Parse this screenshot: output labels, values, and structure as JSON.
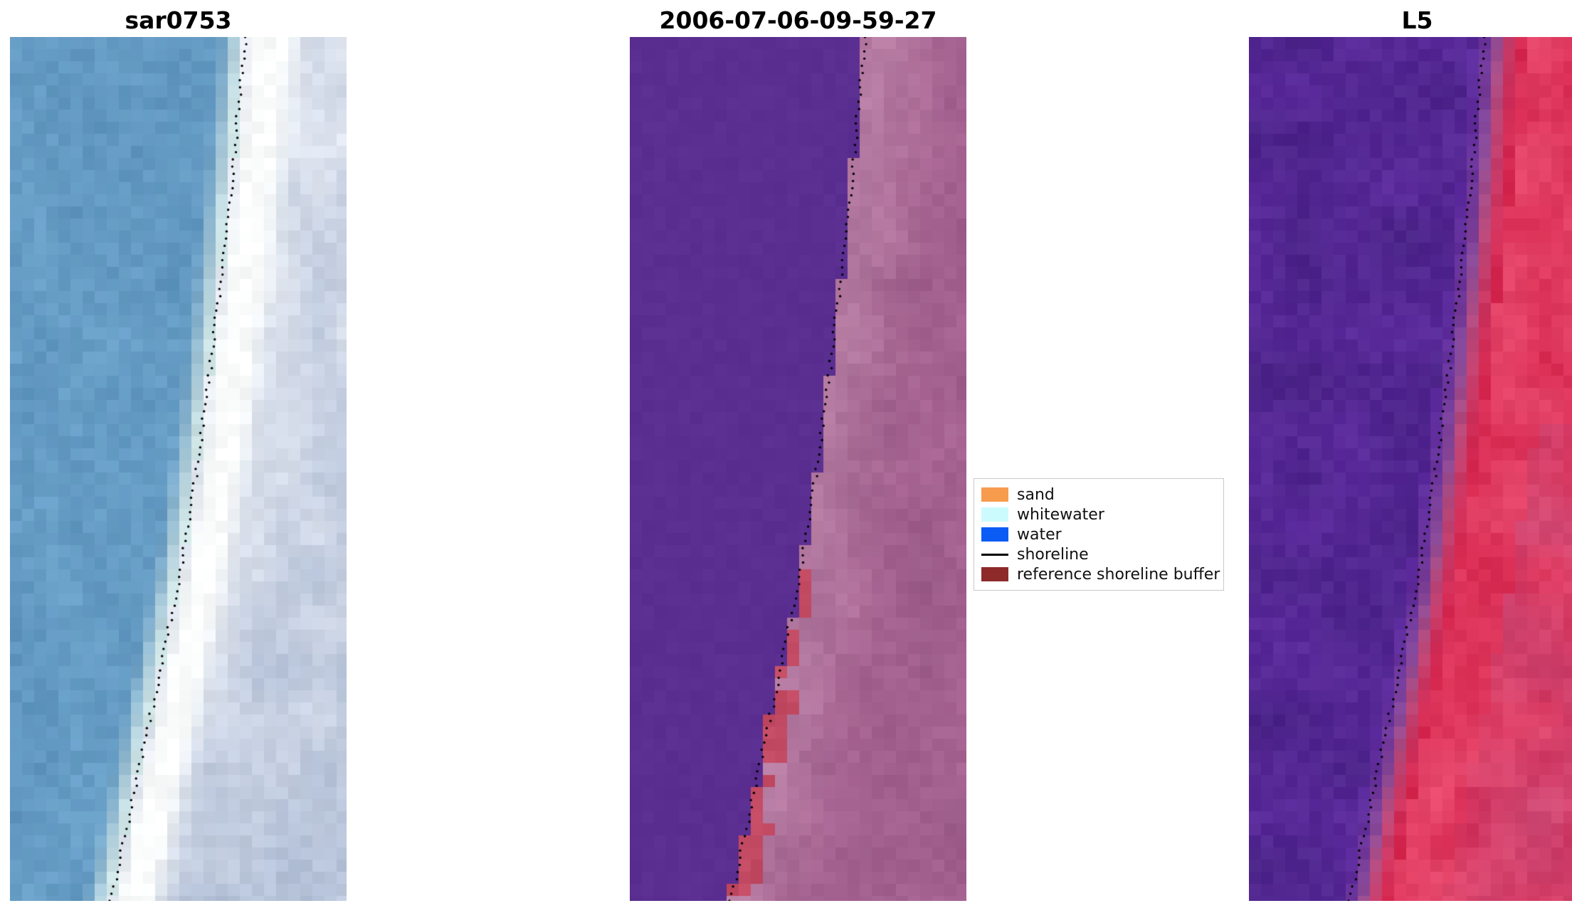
{
  "figure": {
    "background": "#ffffff"
  },
  "chart_data": {
    "type": "heatmap",
    "title": "",
    "panel_titles": [
      "sar0753",
      "2006-07-06-09-59-27",
      "L5"
    ],
    "shoreline_x": [
      0.7,
      0.675,
      0.65,
      0.62,
      0.59,
      0.555,
      0.515,
      0.465,
      0.41,
      0.355,
      0.3
    ],
    "panels": [
      {
        "title": "sar0753",
        "palette": {
          "water": "#6ba2ca",
          "water_dark": "#5a90ba",
          "foam": "#ddeeea",
          "white": "#fbfdfc",
          "right": "#aebcd4",
          "right_light": "#e4e9f3"
        }
      },
      {
        "title": "2006-07-06-09-59-27",
        "palette": {
          "water_class": "#5b2e91",
          "land": "#a96694",
          "land_dark": "#8f5280",
          "boundary_pink": "#c289ad",
          "buffer_red": "#c4455c"
        },
        "buffer_patches": [
          {
            "y": 0.62,
            "h": 0.05,
            "d0": 0,
            "d1": 0.05
          },
          {
            "y": 0.69,
            "h": 0.05,
            "d0": 0,
            "d1": 0.035
          },
          {
            "y": 0.76,
            "h": 0.08,
            "d0": 0,
            "d1": 0.075
          },
          {
            "y": 0.855,
            "h": 0.05,
            "d0": 0,
            "d1": 0.04
          },
          {
            "y": 0.91,
            "h": 0.09,
            "d0": 0.005,
            "d1": 0.06
          }
        ]
      },
      {
        "title": "L5",
        "palette": {
          "purple": "#5c2b9d",
          "purple_dark": "#452181",
          "red": "#d72850",
          "red_light": "#e84a6e",
          "mauve": "#a85e95"
        }
      }
    ],
    "legend": {
      "position": "center right",
      "items": [
        {
          "key": "sand",
          "label": "sand",
          "color": "#f79b4d",
          "type": "patch"
        },
        {
          "key": "whitewater",
          "label": "whitewater",
          "color": "#ccfbfd",
          "type": "patch"
        },
        {
          "key": "water",
          "label": "water",
          "color": "#0b5cf5",
          "type": "patch"
        },
        {
          "key": "shoreline",
          "label": "shoreline",
          "color": "#000000",
          "type": "line"
        },
        {
          "key": "reference-shoreline-buffer",
          "label": "reference shoreline buffer",
          "color": "#8e2a2a",
          "type": "patch"
        }
      ]
    }
  }
}
